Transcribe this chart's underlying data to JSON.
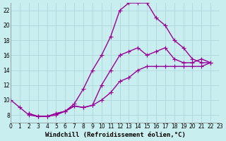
{
  "xlabel": "Windchill (Refroidissement éolien,°C)",
  "background_color": "#c8eef0",
  "grid_color": "#aad4d8",
  "line_color": "#990099",
  "xlim": [
    0,
    23
  ],
  "ylim": [
    7,
    23
  ],
  "xticks": [
    0,
    1,
    2,
    3,
    4,
    5,
    6,
    7,
    8,
    9,
    10,
    11,
    12,
    13,
    14,
    15,
    16,
    17,
    18,
    19,
    20,
    21,
    22,
    23
  ],
  "yticks": [
    8,
    10,
    12,
    14,
    16,
    18,
    20,
    22
  ],
  "line1_x": [
    0,
    1,
    2,
    3,
    4,
    5,
    6,
    7,
    8,
    9,
    10,
    11,
    12,
    13,
    14,
    15,
    16,
    17,
    18,
    19,
    20,
    21,
    22
  ],
  "line1_y": [
    10,
    9,
    8,
    7.8,
    7.8,
    8,
    8.5,
    9.5,
    11.5,
    14,
    16,
    18.5,
    22,
    23,
    23,
    23,
    21,
    20,
    18,
    17,
    15.5,
    15,
    15
  ],
  "line2_x": [
    2,
    3,
    4,
    5,
    6,
    7,
    8,
    9,
    10,
    11,
    12,
    13,
    14,
    15,
    16,
    17,
    18,
    19,
    20,
    21,
    22
  ],
  "line2_y": [
    8.2,
    7.8,
    7.8,
    8.2,
    8.5,
    9.2,
    9.0,
    9.3,
    12.0,
    14.0,
    16.0,
    16.5,
    17.0,
    16.0,
    16.5,
    17.0,
    15.5,
    15.0,
    15.0,
    15.5,
    15.0
  ],
  "line3_x": [
    2,
    3,
    4,
    5,
    6,
    7,
    8,
    9,
    10,
    11,
    12,
    13,
    14,
    15,
    16,
    17,
    18,
    19,
    20,
    21,
    22
  ],
  "line3_y": [
    8.2,
    7.8,
    7.8,
    8.2,
    8.5,
    9.2,
    9.0,
    9.3,
    10.0,
    11.0,
    12.5,
    13.0,
    14.0,
    14.5,
    14.5,
    14.5,
    14.5,
    14.5,
    14.5,
    14.5,
    15.0
  ],
  "marker": "+",
  "markersize": 4,
  "linewidth": 1.0,
  "tick_fontsize": 5.5,
  "xlabel_fontsize": 6.5
}
